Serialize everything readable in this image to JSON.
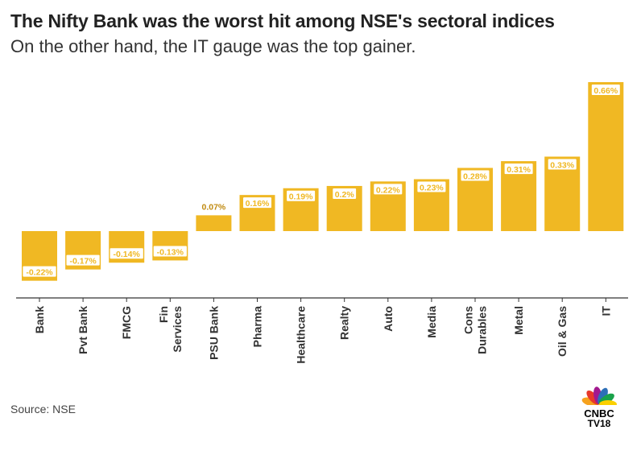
{
  "header": {
    "title": "The Nifty Bank was the worst hit among NSE's sectoral indices",
    "subtitle": "On the other hand, the IT gauge was the top gainer."
  },
  "footer": {
    "source": "Source: NSE"
  },
  "logo": {
    "line1": "CNBC",
    "line2": "TV18",
    "petal_colors": [
      "#f6a21e",
      "#e8392b",
      "#a2198f",
      "#2d6fb7",
      "#1aa24a",
      "#fbd000"
    ]
  },
  "colors": {
    "bar": "#f0b823",
    "axis": "#333333",
    "label_bg": "#ffffff"
  },
  "chart_data": {
    "type": "bar",
    "categories": [
      [
        "Bank"
      ],
      [
        "Pvt Bank"
      ],
      [
        "FMCG"
      ],
      [
        "Fin",
        "Services"
      ],
      [
        "PSU Bank"
      ],
      [
        "Pharma"
      ],
      [
        "Healthcare"
      ],
      [
        "Realty"
      ],
      [
        "Auto"
      ],
      [
        "Media"
      ],
      [
        "Cons",
        "Durables"
      ],
      [
        "Metal"
      ],
      [
        "Oil & Gas"
      ],
      [
        "IT"
      ]
    ],
    "values": [
      -0.22,
      -0.17,
      -0.14,
      -0.13,
      0.07,
      0.16,
      0.19,
      0.2,
      0.22,
      0.23,
      0.28,
      0.31,
      0.33,
      0.66
    ],
    "labels": [
      "-0.22%",
      "-0.17%",
      "-0.14%",
      "-0.13%",
      "0.07%",
      "0.16%",
      "0.19%",
      "0.2%",
      "0.22%",
      "0.23%",
      "0.28%",
      "0.31%",
      "0.33%",
      "0.66%"
    ],
    "ylim": [
      -0.22,
      0.66
    ],
    "grid": false,
    "legend": "none"
  }
}
